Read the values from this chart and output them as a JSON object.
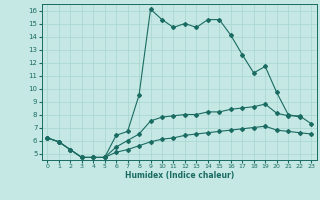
{
  "xlabel": "Humidex (Indice chaleur)",
  "ylabel": "",
  "xlim": [
    -0.5,
    23.5
  ],
  "ylim": [
    4.5,
    16.5
  ],
  "xticks": [
    0,
    1,
    2,
    3,
    4,
    5,
    6,
    7,
    8,
    9,
    10,
    11,
    12,
    13,
    14,
    15,
    16,
    17,
    18,
    19,
    20,
    21,
    22,
    23
  ],
  "yticks": [
    5,
    6,
    7,
    8,
    9,
    10,
    11,
    12,
    13,
    14,
    15,
    16
  ],
  "background_color": "#c5e8e4",
  "grid_color": "#a8d4cf",
  "line_color": "#1a6b62",
  "line1_x": [
    0,
    1,
    2,
    3,
    4,
    5,
    6,
    7,
    8,
    9,
    10,
    11,
    12,
    13,
    14,
    15,
    16,
    17,
    18,
    19,
    20,
    21,
    22
  ],
  "line1_y": [
    6.2,
    5.9,
    5.3,
    4.7,
    4.7,
    4.7,
    6.4,
    6.7,
    9.5,
    16.1,
    15.3,
    14.7,
    15.0,
    14.7,
    15.3,
    15.3,
    14.1,
    12.6,
    11.2,
    11.7,
    9.7,
    8.0,
    7.8
  ],
  "line2_x": [
    0,
    1,
    2,
    3,
    4,
    5,
    6,
    7,
    8,
    9,
    10,
    11,
    12,
    13,
    14,
    15,
    16,
    17,
    18,
    19,
    20,
    21,
    22,
    23
  ],
  "line2_y": [
    6.2,
    5.9,
    5.3,
    4.7,
    4.7,
    4.7,
    5.5,
    6.0,
    6.5,
    7.5,
    7.8,
    7.9,
    8.0,
    8.0,
    8.2,
    8.2,
    8.4,
    8.5,
    8.6,
    8.8,
    8.1,
    7.9,
    7.9,
    7.3
  ],
  "line3_x": [
    0,
    1,
    2,
    3,
    4,
    5,
    6,
    7,
    8,
    9,
    10,
    11,
    12,
    13,
    14,
    15,
    16,
    17,
    18,
    19,
    20,
    21,
    22,
    23
  ],
  "line3_y": [
    6.2,
    5.9,
    5.3,
    4.7,
    4.7,
    4.7,
    5.1,
    5.3,
    5.6,
    5.9,
    6.1,
    6.2,
    6.4,
    6.5,
    6.6,
    6.7,
    6.8,
    6.9,
    7.0,
    7.1,
    6.8,
    6.7,
    6.6,
    6.5
  ]
}
